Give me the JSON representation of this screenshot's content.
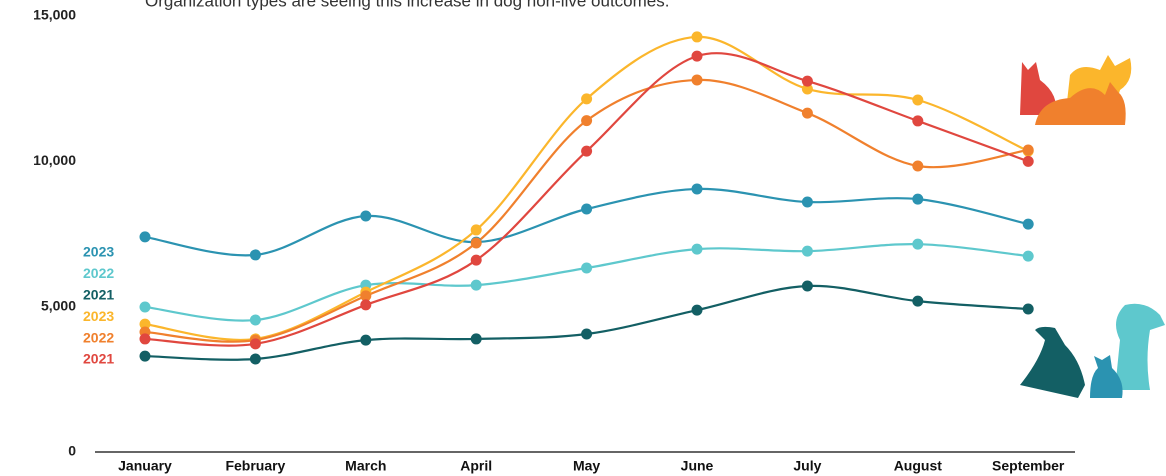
{
  "chart_data": {
    "type": "line",
    "subtitle": "Organization types are seeing this increase in dog non-live outcomes.",
    "categories": [
      "January",
      "February",
      "March",
      "April",
      "May",
      "June",
      "July",
      "August",
      "September"
    ],
    "series": [
      {
        "name": "2023",
        "color": "#2b93b1",
        "values": [
          7400,
          6780,
          8120,
          7220,
          8360,
          9050,
          8600,
          8700,
          7840
        ]
      },
      {
        "name": "2022",
        "color": "#5ec8cd",
        "values": [
          4990,
          4540,
          5740,
          5740,
          6330,
          6980,
          6910,
          7150,
          6740
        ]
      },
      {
        "name": "2021",
        "color": "#135f64",
        "values": [
          3300,
          3200,
          3850,
          3890,
          4060,
          4880,
          5710,
          5190,
          4920
        ]
      },
      {
        "name": "2023",
        "color": "#fbb62c",
        "values": [
          4400,
          3890,
          5500,
          7640,
          12150,
          14280,
          12490,
          12110,
          10350
        ]
      },
      {
        "name": "2022",
        "color": "#f0802d",
        "values": [
          4130,
          3850,
          5370,
          7190,
          11400,
          12800,
          11660,
          9840,
          10390
        ]
      },
      {
        "name": "2021",
        "color": "#e0473f",
        "values": [
          3890,
          3720,
          5060,
          6600,
          10350,
          13620,
          12760,
          11390,
          10000
        ]
      }
    ],
    "ylim": [
      0,
      15000
    ],
    "yticks": [
      0,
      {
        "value": 5000,
        "label": "5,000"
      },
      {
        "value": 10000,
        "label": "10,000"
      },
      {
        "value": 15000,
        "label": "15,000"
      }
    ],
    "grid": false
  }
}
